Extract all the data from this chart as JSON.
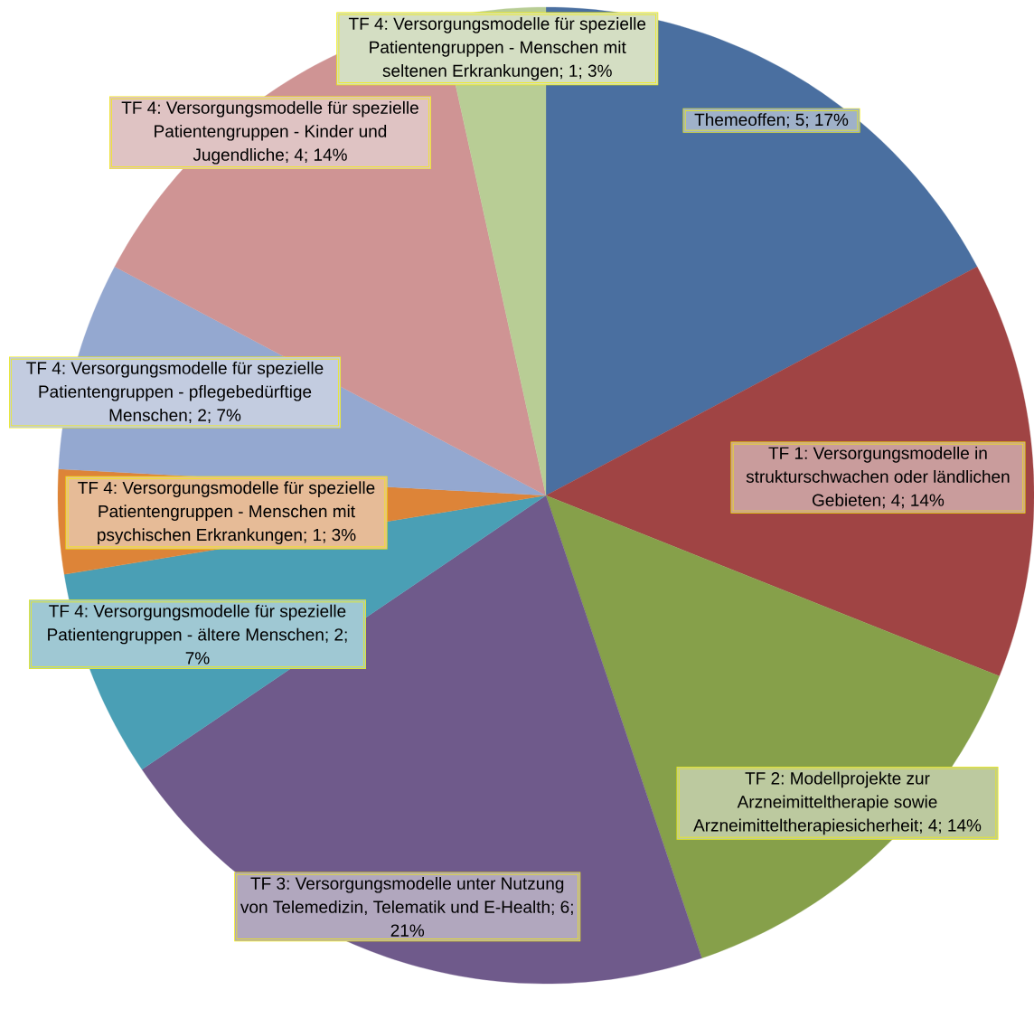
{
  "chart_data": {
    "type": "pie",
    "categories": [
      null,
      null,
      null,
      null,
      null,
      null,
      null,
      null,
      null
    ],
    "values": [
      5,
      4,
      4,
      6,
      2,
      1,
      2,
      4,
      1
    ],
    "value_labels": [
      "Themeoffen; 5; 17%",
      "TF 1: Versorgungsmodelle in strukturschwachen oder ländlichen Gebieten; 4; 14%",
      "TF 2: Modellprojekte zur Arzneimitteltherapie sowie Arzneimitteltherapiesicherheit; 4; 14%",
      "TF 3: Versorgungsmodelle unter Nutzung von Telemedizin, Telematik und E-Health; 6; 21%",
      "TF 4: Versorgungsmodelle für spezielle Patientengruppen - ältere Menschen; 2; 7%",
      "TF 4: Versorgungsmodelle für spezielle Patientengruppen - Menschen mit psychischen Erkrankungen; 1; 3%",
      "TF 4: Versorgungsmodelle für spezielle Patientengruppen - pflegebedürftige Menschen; 2; 7%",
      "TF 4: Versorgungsmodelle für spezielle Patientengruppen - Kinder und Jugendliche; 4; 14%",
      "TF 4: Versorgungsmodelle für spezielle Patientengruppen - Menschen mit seltenen Erkrankungen; 1; 3%"
    ],
    "colors": [
      "#4a6fa0",
      "#a04444",
      "#86a04a",
      "#6f5a8b",
      "#4a9fb5",
      "#dd8438",
      "#94a8d0",
      "#cf9494",
      "#b8cd95"
    ]
  }
}
